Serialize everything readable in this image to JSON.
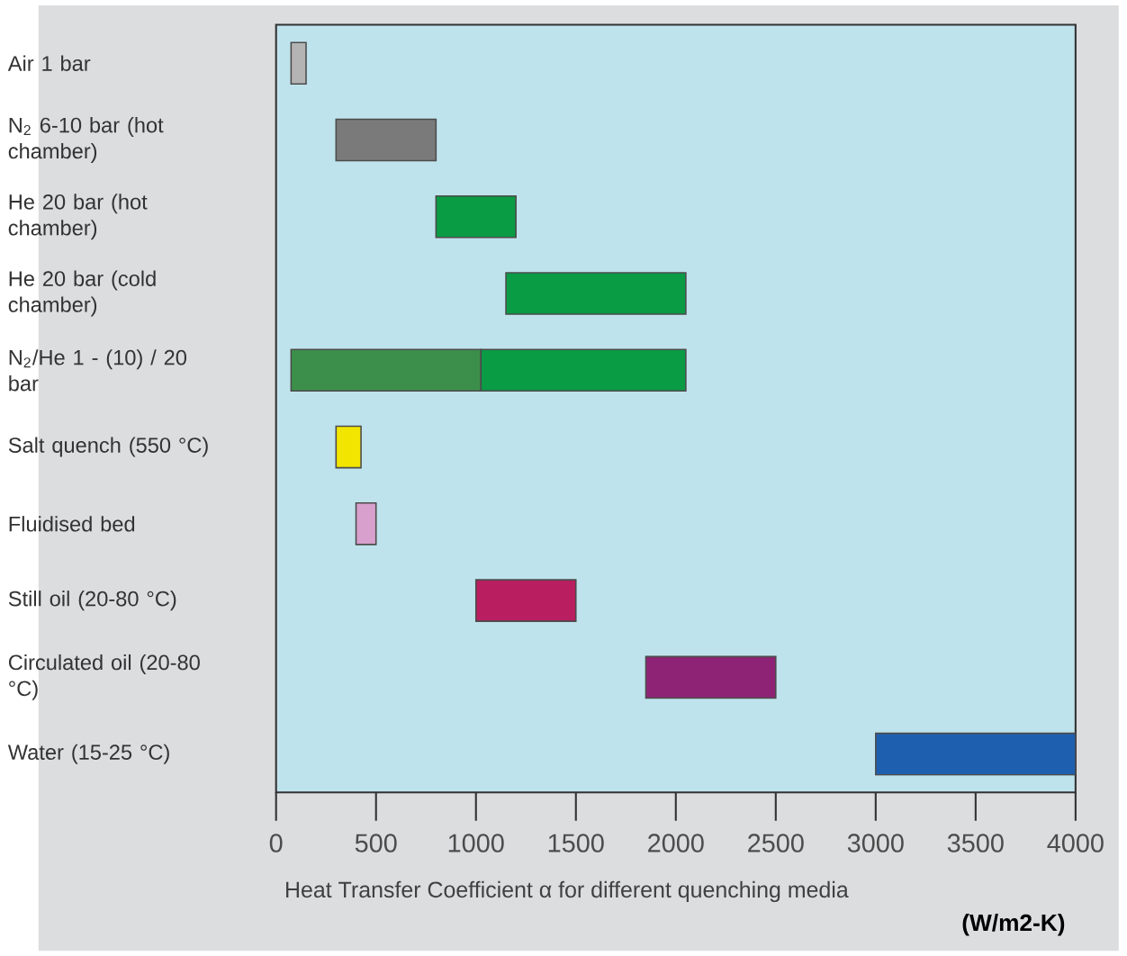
{
  "chart_data": {
    "type": "bar",
    "orientation": "horizontal",
    "xlabel": "Heat Transfer Coefficient α for different quenching media",
    "annotations": [
      "(W/m2-K)"
    ],
    "categories": [
      "Air 1 bar",
      "N$_{2}$ 6-10 bar (hot chamber)",
      "He 20 bar (hot chamber)",
      "He 20 bar (cold chamber)",
      "N$_{2}$/He 1 - (10) / 20 bar",
      "Salt quench (550 °C)",
      "Fluidised bed",
      "Still oil (20-80 °C)",
      "Circulated oil (20-80 °C)",
      "Water (15-25 °C)"
    ],
    "series": [
      {
        "base": [
          75,
          300,
          800,
          1150,
          75,
          300,
          400,
          1000,
          1850,
          3000
        ],
        "colors": [
          "#b4b4b4",
          "#7a7a7a",
          "#0a9b45",
          "#0a9b45",
          "#3c8f4a",
          "#f2e600",
          "#d8a0cc",
          "#b81e60",
          "#8e2376",
          "#1f5fb0"
        ],
        "values": [
          75,
          500,
          400,
          900,
          950,
          125,
          100,
          500,
          650,
          1000
        ]
      },
      {
        "base": [
          null,
          null,
          null,
          null,
          1025,
          null,
          null,
          null,
          null,
          null
        ],
        "color": "#0a9b45",
        "values": [
          null,
          null,
          null,
          null,
          1025,
          null,
          null,
          null,
          null,
          null
        ]
      }
    ],
    "xlim": [
      0,
      4000
    ],
    "xticks": [
      0,
      500,
      1000,
      1500,
      2000,
      2500,
      3000,
      3500,
      4000
    ]
  }
}
